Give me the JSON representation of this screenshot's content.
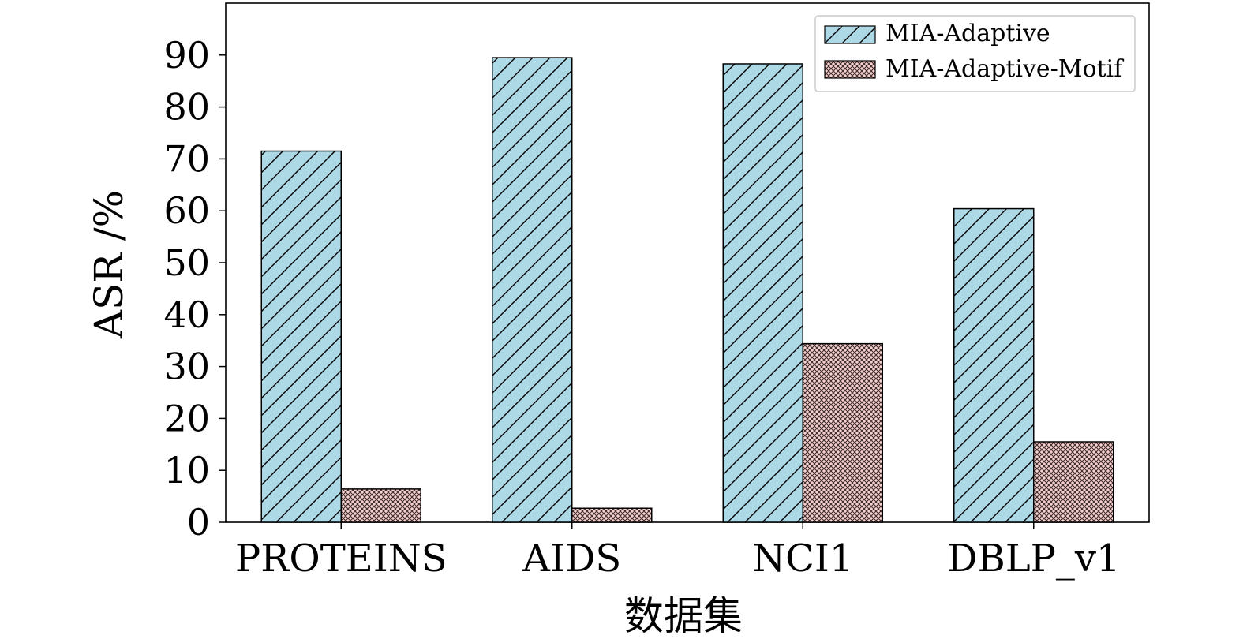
{
  "chart_data": {
    "type": "bar",
    "categories": [
      "PROTEINS",
      "AIDS",
      "NCI1",
      "DBLP_v1"
    ],
    "series": [
      {
        "name": "MIA-Adaptive",
        "values": [
          71.5,
          89.5,
          88.3,
          60.4
        ],
        "color": "#add8e6",
        "pattern": "diagonal-hatch"
      },
      {
        "name": "MIA-Adaptive-Motif",
        "values": [
          6.4,
          2.7,
          34.4,
          15.5
        ],
        "color": "#f4c6c6",
        "pattern": "dotted-crosshatch"
      }
    ],
    "xlabel": "数据集",
    "ylabel": "ASR /%",
    "ylim": [
      0,
      100
    ],
    "yticks": [
      0,
      10,
      20,
      30,
      40,
      50,
      60,
      70,
      80,
      90
    ],
    "legend_position": "top-right",
    "grid": false
  }
}
